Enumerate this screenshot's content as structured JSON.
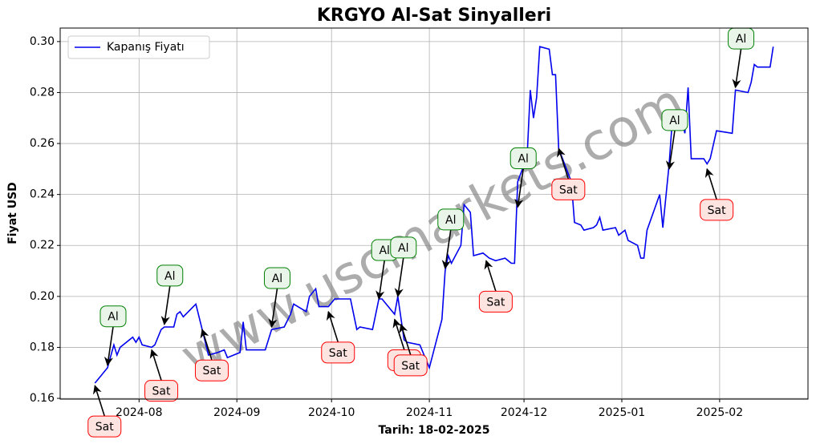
{
  "chart_data": {
    "type": "line",
    "title": "KRGYO Al-Sat Sinyalleri",
    "xlabel": "Tarih: 18-02-2025",
    "ylabel": "Fiyat USD",
    "watermark": "www.uscmarkets.com",
    "legend": "upper left",
    "grid": true,
    "x": [
      "2024-07-18",
      "2024-07-22",
      "2024-07-24",
      "2024-07-25",
      "2024-07-26",
      "2024-07-30",
      "2024-07-31",
      "2024-08-01",
      "2024-08-02",
      "2024-08-05",
      "2024-08-06",
      "2024-08-08",
      "2024-08-09",
      "2024-08-12",
      "2024-08-13",
      "2024-08-14",
      "2024-08-15",
      "2024-08-19",
      "2024-08-21",
      "2024-08-23",
      "2024-08-26",
      "2024-08-28",
      "2024-08-29",
      "2024-09-02",
      "2024-09-03",
      "2024-09-04",
      "2024-09-06",
      "2024-09-10",
      "2024-09-12",
      "2024-09-16",
      "2024-09-18",
      "2024-09-19",
      "2024-09-23",
      "2024-09-24",
      "2024-09-26",
      "2024-09-27",
      "2024-09-30",
      "2024-10-02",
      "2024-10-07",
      "2024-10-09",
      "2024-10-10",
      "2024-10-14",
      "2024-10-16",
      "2024-10-17",
      "2024-10-21",
      "2024-10-22",
      "2024-10-24",
      "2024-10-25",
      "2024-10-29",
      "2024-11-01",
      "2024-11-05",
      "2024-11-06",
      "2024-11-07",
      "2024-11-08",
      "2024-11-11",
      "2024-11-12",
      "2024-11-14",
      "2024-11-15",
      "2024-11-18",
      "2024-11-20",
      "2024-11-22",
      "2024-11-25",
      "2024-11-27",
      "2024-11-28",
      "2024-11-29",
      "2024-12-02",
      "2024-12-03",
      "2024-12-04",
      "2024-12-05",
      "2024-12-06",
      "2024-12-09",
      "2024-12-10",
      "2024-12-11",
      "2024-12-12",
      "2024-12-16",
      "2024-12-17",
      "2024-12-19",
      "2024-12-20",
      "2024-12-23",
      "2024-12-24",
      "2024-12-25",
      "2024-12-26",
      "2024-12-30",
      "2024-12-31",
      "2025-01-02",
      "2025-01-03",
      "2025-01-06",
      "2025-01-07",
      "2025-01-08",
      "2025-01-09",
      "2025-01-13",
      "2025-01-14",
      "2025-01-16",
      "2025-01-17",
      "2025-01-20",
      "2025-01-21",
      "2025-01-22",
      "2025-01-23",
      "2025-01-27",
      "2025-01-28",
      "2025-01-29",
      "2025-01-31",
      "2025-02-05",
      "2025-02-06",
      "2025-02-10",
      "2025-02-11",
      "2025-02-12",
      "2025-02-13",
      "2025-02-17",
      "2025-02-18"
    ],
    "series": [
      {
        "name": "Kapanış Fiyatı",
        "color": "#0000ee",
        "values": [
          0.166,
          0.172,
          0.181,
          0.177,
          0.18,
          0.184,
          0.182,
          0.184,
          0.181,
          0.18,
          0.181,
          0.187,
          0.188,
          0.188,
          0.193,
          0.194,
          0.192,
          0.197,
          0.187,
          0.177,
          0.178,
          0.179,
          0.176,
          0.178,
          0.19,
          0.179,
          0.179,
          0.179,
          0.187,
          0.188,
          0.193,
          0.197,
          0.194,
          0.2,
          0.203,
          0.196,
          0.196,
          0.199,
          0.199,
          0.187,
          0.188,
          0.187,
          0.199,
          0.199,
          0.193,
          0.2,
          0.183,
          0.182,
          0.181,
          0.172,
          0.191,
          0.21,
          0.216,
          0.213,
          0.22,
          0.236,
          0.233,
          0.216,
          0.217,
          0.215,
          0.214,
          0.215,
          0.213,
          0.213,
          0.245,
          0.255,
          0.281,
          0.27,
          0.278,
          0.298,
          0.297,
          0.287,
          0.287,
          0.258,
          0.245,
          0.229,
          0.228,
          0.226,
          0.227,
          0.228,
          0.231,
          0.226,
          0.227,
          0.224,
          0.226,
          0.222,
          0.22,
          0.215,
          0.215,
          0.226,
          0.24,
          0.227,
          0.252,
          0.269,
          0.269,
          0.264,
          0.282,
          0.254,
          0.254,
          0.252,
          0.254,
          0.265,
          0.264,
          0.281,
          0.28,
          0.284,
          0.291,
          0.29,
          0.29,
          0.298
        ]
      }
    ],
    "annotations": [
      {
        "text": "Al",
        "x": "2024-07-22",
        "y": 0.173
      },
      {
        "text": "Al",
        "x": "2024-08-09",
        "y": 0.189
      },
      {
        "text": "Al",
        "x": "2024-09-12",
        "y": 0.188
      },
      {
        "text": "Al",
        "x": "2024-10-16",
        "y": 0.199
      },
      {
        "text": "Al",
        "x": "2024-10-22",
        "y": 0.2
      },
      {
        "text": "Al",
        "x": "2024-11-06",
        "y": 0.211
      },
      {
        "text": "Al",
        "x": "2024-11-29",
        "y": 0.235
      },
      {
        "text": "Al",
        "x": "2025-01-16",
        "y": 0.25
      },
      {
        "text": "Al",
        "x": "2025-02-06",
        "y": 0.282
      },
      {
        "text": "Sat",
        "x": "2024-07-18",
        "y": 0.165
      },
      {
        "text": "Sat",
        "x": "2024-08-05",
        "y": 0.179
      },
      {
        "text": "Sat",
        "x": "2024-08-21",
        "y": 0.187
      },
      {
        "text": "Sat",
        "x": "2024-09-30",
        "y": 0.194
      },
      {
        "text": "Sat",
        "x": "2024-10-21",
        "y": 0.191
      },
      {
        "text": "Sat",
        "x": "2024-10-23",
        "y": 0.189
      },
      {
        "text": "Sat",
        "x": "2024-11-19",
        "y": 0.214
      },
      {
        "text": "Sat",
        "x": "2024-12-12",
        "y": 0.258
      },
      {
        "text": "Sat",
        "x": "2025-01-28",
        "y": 0.25
      }
    ],
    "xlim": [
      "2024-07-07",
      "2025-03-01"
    ],
    "xticks": [
      {
        "value": "2024-08-01",
        "label": "2024-08"
      },
      {
        "value": "2024-09-01",
        "label": "2024-09"
      },
      {
        "value": "2024-10-01",
        "label": "2024-10"
      },
      {
        "value": "2024-11-01",
        "label": "2024-11"
      },
      {
        "value": "2024-12-01",
        "label": "2024-12"
      },
      {
        "value": "2025-01-01",
        "label": "2025-01"
      },
      {
        "value": "2025-02-01",
        "label": "2025-02"
      }
    ],
    "ylim": [
      0.1597,
      0.3053
    ],
    "yticks": [
      0.16,
      0.18,
      {
        "value": 0.2,
        "label": "0.20"
      },
      0.22,
      0.24,
      0.26,
      0.28,
      {
        "value": 0.3,
        "label": "0.30"
      }
    ]
  }
}
